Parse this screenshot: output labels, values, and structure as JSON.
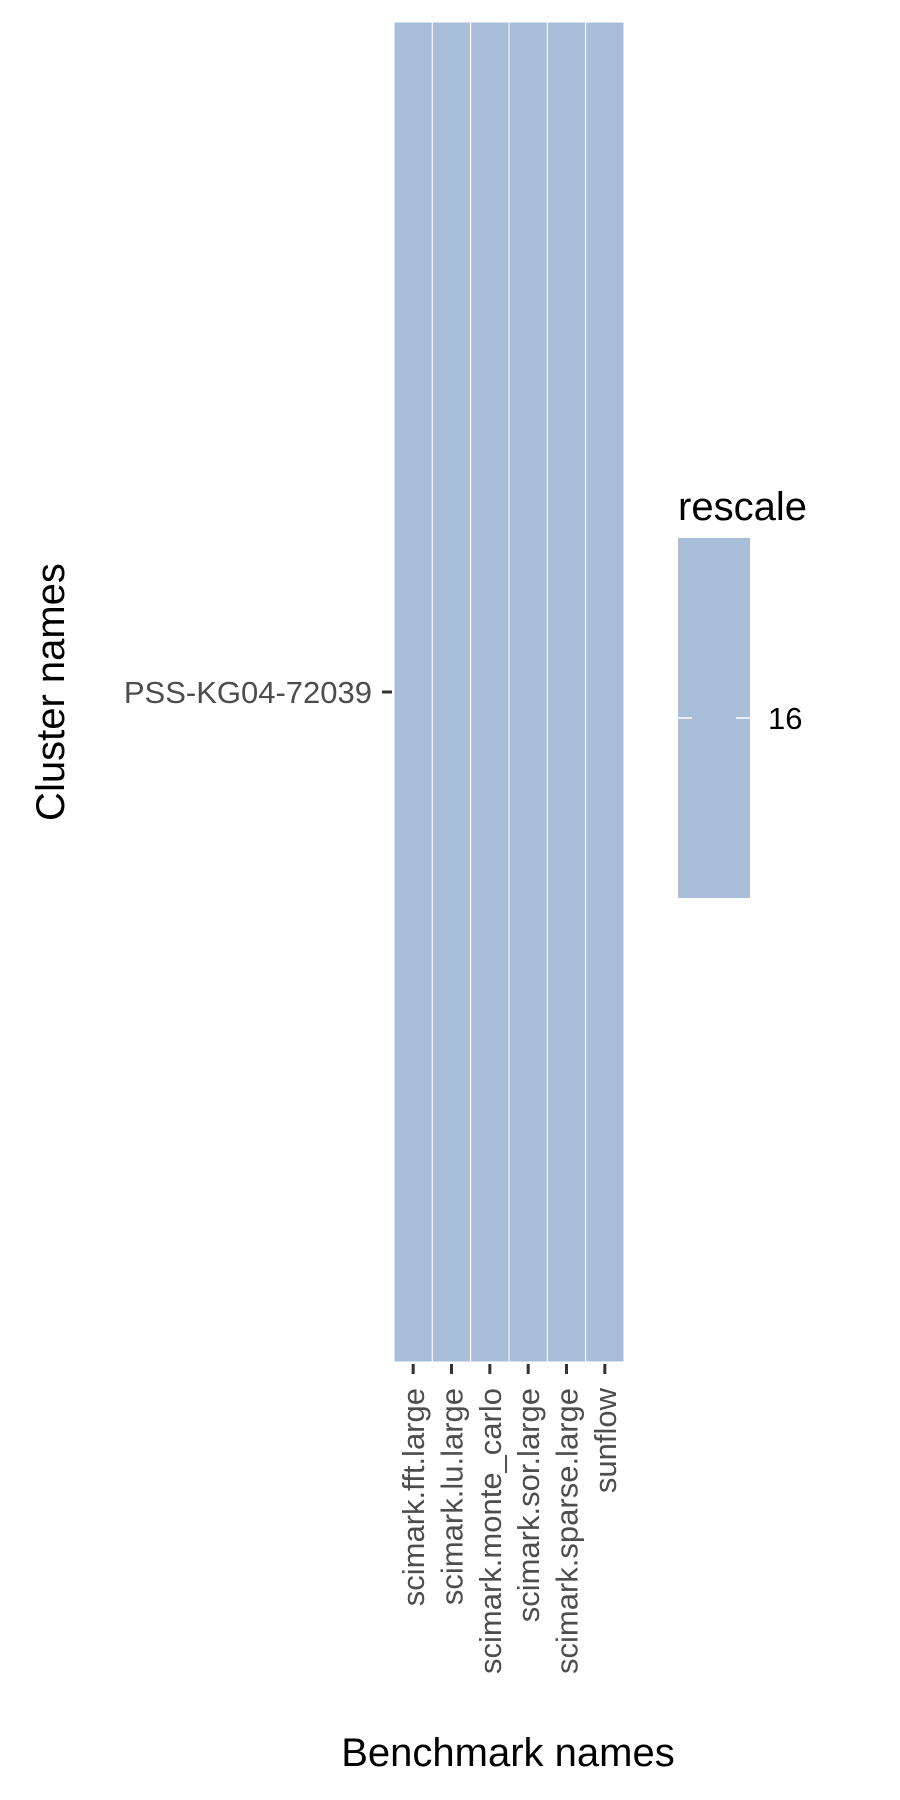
{
  "chart_data": {
    "type": "heatmap",
    "x_categories": [
      "scimark.fft.large",
      "scimark.lu.large",
      "scimark.monte_carlo",
      "scimark.sor.large",
      "scimark.sparse.large",
      "sunflow"
    ],
    "y_categories": [
      "PSS-KG04-72039"
    ],
    "values": [
      [
        16,
        16,
        16,
        16,
        16,
        16
      ]
    ],
    "xlabel": "Benchmark names",
    "ylabel": "Cluster names",
    "legend": {
      "title": "rescale",
      "position": "right",
      "breaks": [
        16
      ],
      "break_labels": [
        "16"
      ]
    },
    "fill_color": "#a8bdd8",
    "grid": false
  }
}
